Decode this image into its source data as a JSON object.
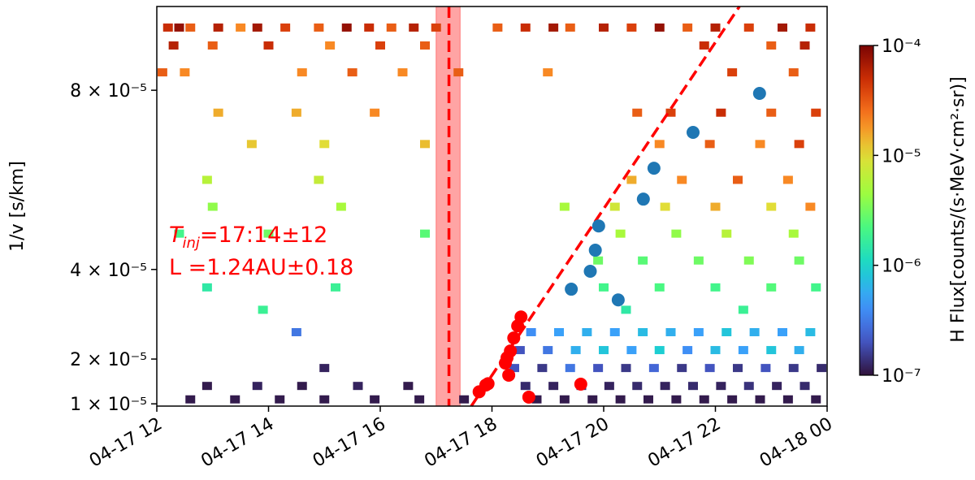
{
  "chart_data": {
    "type": "spectrogram",
    "ylabel": "1/v [s/km]",
    "xlim": [
      12,
      24
    ],
    "xticks": [
      {
        "value": 12,
        "label": "04-17 12"
      },
      {
        "value": 14,
        "label": "04-17 14"
      },
      {
        "value": 16,
        "label": "04-17 16"
      },
      {
        "value": 18,
        "label": "04-17 18"
      },
      {
        "value": 20,
        "label": "04-17 20"
      },
      {
        "value": 22,
        "label": "04-17 22"
      },
      {
        "value": 24,
        "label": "04-18 00"
      }
    ],
    "ylim": [
      9.5e-06,
      9.87e-05
    ],
    "yticks": [
      {
        "value": 1e-05,
        "label": "1 × 10⁻⁵"
      },
      {
        "value": 2e-05,
        "label": "2 × 10⁻⁵"
      },
      {
        "value": 4e-05,
        "label": "4 × 10⁻⁵"
      },
      {
        "value": 8e-05,
        "label": "8 × 10⁻⁵"
      }
    ],
    "colormap": "turbo",
    "colorbar": {
      "label": "H Flux[counts/(s·MeV·cm²·sr)]",
      "log": true,
      "lim": [
        1e-07,
        0.0001
      ],
      "ticks": [
        {
          "value": 1e-07,
          "label": "10⁻⁷"
        },
        {
          "value": 1e-06,
          "label": "10⁻⁶"
        },
        {
          "value": 1e-05,
          "label": "10⁻⁵"
        },
        {
          "value": 0.0001,
          "label": "10⁻⁴"
        }
      ]
    },
    "heatmap": {
      "y": [
        9.4e-05,
        9e-05,
        8.4e-05,
        7.5e-05,
        6.8e-05,
        6e-05,
        5.4e-05,
        4.8e-05,
        4.2e-05,
        3.6e-05,
        3.1e-05,
        2.6e-05,
        2.2e-05,
        1.8e-05,
        1.4e-05,
        1.1e-05
      ],
      "x": [
        [
          12.2,
          12.4,
          12.6,
          13.1,
          13.5,
          13.8,
          14.3,
          14.9,
          15.4,
          15.8,
          16.2,
          16.6,
          17.0,
          18.1,
          18.6,
          19.1,
          19.4,
          20.0,
          20.5,
          21.0,
          21.5,
          22.0,
          22.6,
          23.2,
          23.7
        ],
        [
          12.3,
          13.0,
          14.0,
          15.1,
          16.0,
          16.8,
          21.8,
          23.0,
          23.6
        ],
        [
          12.1,
          12.5,
          14.6,
          15.5,
          16.4,
          17.4,
          19.0,
          22.3,
          23.4
        ],
        [
          13.1,
          14.5,
          15.9,
          20.6,
          21.2,
          22.1,
          23.0,
          23.8
        ],
        [
          13.7,
          15.0,
          16.8,
          21.0,
          21.9,
          22.8,
          23.5
        ],
        [
          12.9,
          14.9,
          20.5,
          21.4,
          22.4,
          23.3
        ],
        [
          13.0,
          15.3,
          19.3,
          20.2,
          21.1,
          22.0,
          23.0,
          23.7
        ],
        [
          12.4,
          14.0,
          16.8,
          20.3,
          21.3,
          22.2,
          23.4
        ],
        [
          19.9,
          20.7,
          21.7,
          22.6,
          23.5
        ],
        [
          12.9,
          15.2,
          20.0,
          21.0,
          22.0,
          23.0,
          23.8
        ],
        [
          13.9,
          20.4,
          22.5
        ],
        [
          14.5,
          18.7,
          19.2,
          19.7,
          20.2,
          20.7,
          21.2,
          21.7,
          22.2,
          22.7,
          23.2,
          23.7
        ],
        [
          18.5,
          19.0,
          19.5,
          20.0,
          20.5,
          21.0,
          21.5,
          22.0,
          22.5,
          23.0,
          23.5
        ],
        [
          15.0,
          18.4,
          18.9,
          19.4,
          19.9,
          20.4,
          20.9,
          21.4,
          21.9,
          22.4,
          22.9,
          23.4,
          23.9
        ],
        [
          12.9,
          13.8,
          14.6,
          15.6,
          16.5,
          18.6,
          19.1,
          19.6,
          20.1,
          20.6,
          21.1,
          21.6,
          22.1,
          22.6,
          23.1,
          23.6
        ],
        [
          12.6,
          13.4,
          14.2,
          15.0,
          15.9,
          16.7,
          17.5,
          18.8,
          19.3,
          19.8,
          20.3,
          20.8,
          21.3,
          21.8,
          22.3,
          22.8,
          23.3,
          23.8
        ]
      ],
      "values": [
        [
          5e-05,
          8e-05,
          3e-05,
          6e-05,
          2e-05,
          7e-05,
          4e-05,
          3e-05,
          8e-05,
          5e-05,
          3e-05,
          6e-05,
          4e-05,
          3e-05,
          5e-05,
          7e-05,
          3e-05,
          6e-05,
          4e-05,
          8e-05,
          3e-05,
          6e-05,
          4e-05,
          7e-05,
          5e-05
        ],
        [
          6e-05,
          3e-05,
          5e-05,
          2e-05,
          4e-05,
          3e-05,
          5e-05,
          3e-05,
          6e-05
        ],
        [
          3e-05,
          2e-05,
          2e-05,
          3e-05,
          2e-05,
          3e-05,
          2e-05,
          4e-05,
          3e-05
        ],
        [
          1.5e-05,
          1.5e-05,
          2e-05,
          3e-05,
          4e-05,
          5e-05,
          3e-05,
          4e-05
        ],
        [
          1.2e-05,
          1e-05,
          1.3e-05,
          2e-05,
          3e-05,
          2e-05,
          4e-05
        ],
        [
          6e-06,
          7e-06,
          1.5e-05,
          2e-05,
          3e-05,
          2e-05
        ],
        [
          4e-06,
          5e-06,
          5e-06,
          8e-06,
          1e-05,
          1.5e-05,
          1e-05,
          2e-05
        ],
        [
          2e-06,
          3e-06,
          2.5e-06,
          5e-06,
          4e-06,
          6e-06,
          5e-06
        ],
        [
          3e-06,
          2.5e-06,
          3e-06,
          3.5e-06,
          3e-06
        ],
        [
          1.5e-06,
          1.8e-06,
          2e-06,
          2.2e-06,
          2e-06,
          2.4e-06,
          2e-06
        ],
        [
          1.8e-06,
          1.5e-06,
          1.8e-06
        ],
        [
          3e-07,
          4e-07,
          5e-07,
          6e-07,
          5e-07,
          7e-07,
          6e-07,
          5e-07,
          8e-07,
          6e-07,
          5e-07,
          7e-07
        ],
        [
          2e-07,
          3e-07,
          6e-07,
          8e-07,
          5e-07,
          9e-07,
          4e-07,
          7e-07,
          5e-07,
          8e-07,
          6e-07
        ],
        [
          1.2e-07,
          2e-07,
          1.5e-07,
          3e-07,
          2e-07,
          1.5e-07,
          2.5e-07,
          1.5e-07,
          2e-07,
          1.5e-07,
          2e-07,
          1.5e-07,
          1.3e-07
        ],
        [
          1.1e-07,
          1.2e-07,
          1.1e-07,
          1.2e-07,
          1.1e-07,
          1.3e-07,
          1.2e-07,
          1.4e-07,
          1.2e-07,
          1.3e-07,
          1.2e-07,
          1.3e-07,
          1.2e-07,
          1.4e-07,
          1.2e-07,
          1.3e-07
        ],
        [
          1.1e-07,
          1.1e-07,
          1.1e-07,
          1.1e-07,
          1.1e-07,
          1.1e-07,
          1.1e-07,
          1.1e-07,
          1.1e-07,
          1.1e-07,
          1.1e-07,
          1.1e-07,
          1.1e-07,
          1.1e-07,
          1.1e-07,
          1.1e-07,
          1.1e-07,
          1.1e-07
        ]
      ]
    },
    "onset_points": {
      "color": "#ff0000",
      "x": [
        17.77,
        17.89,
        17.93,
        18.24,
        18.27,
        18.3,
        18.33,
        18.39,
        18.46,
        18.52,
        18.66,
        19.59
      ],
      "values": [
        1.27e-05,
        1.42e-05,
        1.45e-05,
        1.91e-05,
        2.03e-05,
        1.64e-05,
        2.18e-05,
        2.47e-05,
        2.74e-05,
        2.94e-05,
        1.15e-05,
        1.44e-05
      ]
    },
    "peak_points": {
      "color": "#1f77b4",
      "x": [
        22.79,
        21.6,
        20.9,
        20.71,
        19.91,
        19.85,
        19.76,
        19.42,
        20.26
      ],
      "values": [
        7.93e-05,
        7.06e-05,
        6.26e-05,
        5.57e-05,
        4.97e-05,
        4.43e-05,
        3.96e-05,
        3.56e-05,
        3.32e-05
      ]
    },
    "fit_line": {
      "color": "#ff0000",
      "x": [
        17.63,
        22.43
      ],
      "values": [
        9.5e-06,
        9.87e-05
      ]
    },
    "injection_time": 17.23,
    "injection_band": [
      17.0,
      17.43
    ],
    "annotation": {
      "symbol": "T",
      "subscript": "inj",
      "time": "=17:14±12",
      "distance": "L =1.24AU±0.18",
      "color": "#ff0000"
    }
  }
}
